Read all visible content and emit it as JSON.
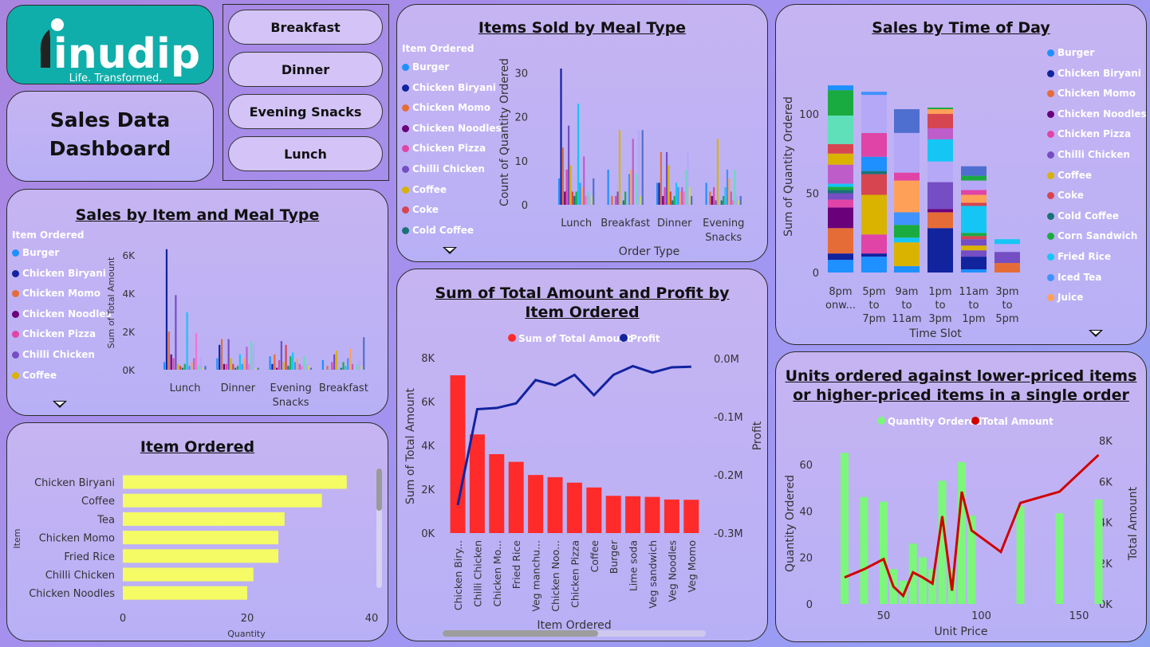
{
  "logo": {
    "name": "inudip",
    "tagline": "Life. Transformed."
  },
  "dashboard": {
    "title_line1": "Sales Data",
    "title_line2": "Dashboard"
  },
  "slicer": {
    "buttons": [
      "Breakfast",
      "Dinner",
      "Evening Snacks",
      "Lunch"
    ]
  },
  "colors": {
    "Burger": "#1e90ff",
    "Chicken Biryani": "#12239e",
    "Chicken Momo": "#e66c37",
    "Chicken Noodles": "#6b007b",
    "Chicken Pizza": "#e044a7",
    "Chilli Chicken": "#744ec2",
    "Coffee": "#d9b300",
    "Coke": "#d64550",
    "Cold Coffee": "#197278",
    "Corn Sandwich": "#1aab40",
    "Fried Rice": "#15c6f4",
    "Iced Tea": "#4092ff",
    "Juice": "#ffa058",
    "Lime soda": "#be5dc9",
    "Tea": "#f472d0",
    "Veg manchurian": "#5fe0b8",
    "Veg sandwich": "#b5a8f7",
    "Veg Noodles": "#c8d95e",
    "Veg Momo": "#4f6fd0"
  },
  "chart_data": [
    {
      "id": "items_sold_by_meal",
      "type": "bar",
      "title": "Items Sold by Meal Type",
      "xlabel": "Order Type",
      "ylabel": "Count of Quantity Ordered",
      "ylim": [
        0,
        33
      ],
      "yticks": [
        0,
        10,
        20,
        30
      ],
      "legend_title": "Item Ordered",
      "legend": [
        "Burger",
        "Chicken Biryani",
        "Chicken Momo",
        "Chicken Noodles",
        "Chicken Pizza",
        "Chilli Chicken",
        "Coffee",
        "Coke",
        "Cold Coffee"
      ],
      "categories": [
        "Lunch",
        "Breakfast",
        "Dinner",
        "Evening Snacks"
      ],
      "category_labels": [
        [
          "Lunch"
        ],
        [
          "Breakfast"
        ],
        [
          "Dinner"
        ],
        [
          "Evening",
          "Snacks"
        ]
      ],
      "series_names": [
        "Burger",
        "Chicken Biryani",
        "Chicken Momo",
        "Chicken Noodles",
        "Chicken Pizza",
        "Chilli Chicken",
        "Coffee",
        "Coke",
        "Cold Coffee",
        "Corn Sandwich",
        "Fried Rice",
        "Iced Tea",
        "Juice",
        "Lime soda",
        "Tea",
        "Veg manchurian",
        "Veg sandwich",
        "Veg Noodles",
        "Veg Momo"
      ],
      "values": [
        [
          6,
          31,
          13,
          3,
          8,
          18,
          9,
          3,
          2,
          3,
          23,
          5,
          4,
          11,
          2,
          3,
          2,
          2,
          6
        ],
        [
          8,
          0,
          2,
          0,
          2,
          3,
          17,
          0,
          1,
          3,
          0,
          7,
          8,
          15,
          0,
          7,
          17,
          2,
          17
        ],
        [
          5,
          5,
          12,
          2,
          4,
          12,
          9,
          3,
          1,
          2,
          5,
          4,
          3,
          4,
          3,
          8,
          12,
          4,
          2
        ],
        [
          5,
          0,
          3,
          2,
          4,
          1,
          15,
          0,
          1,
          2,
          4,
          8,
          6,
          3,
          1,
          8,
          2,
          1,
          2
        ]
      ]
    },
    {
      "id": "sales_by_time",
      "type": "bar",
      "stacked": true,
      "title": "Sales by Time of Day",
      "xlabel": "Time Slot",
      "ylabel": "Sum of Quantity Ordered",
      "ylim": [
        0,
        125
      ],
      "yticks": [
        0,
        50,
        100
      ],
      "legend": [
        "Burger",
        "Chicken Biryani",
        "Chicken Momo",
        "Chicken Noodles",
        "Chicken Pizza",
        "Chilli Chicken",
        "Coffee",
        "Coke",
        "Cold Coffee",
        "Corn Sandwich",
        "Fried Rice",
        "Iced Tea",
        "Juice"
      ],
      "categories": [
        "8pm onw...",
        "5pm to 7pm",
        "9am to 11am",
        "1pm to 3pm",
        "11am to 1pm",
        "3pm to 5pm"
      ],
      "category_labels": [
        [
          "8pm",
          "onw..."
        ],
        [
          "5pm",
          "to",
          "7pm"
        ],
        [
          "9am",
          "to",
          "11am"
        ],
        [
          "1pm",
          "to",
          "3pm"
        ],
        [
          "11am",
          "to",
          "1pm"
        ],
        [
          "3pm",
          "to",
          "5pm"
        ]
      ],
      "stacks": [
        [
          [
            "Burger",
            8
          ],
          [
            "Chicken Biryani",
            4
          ],
          [
            "Chicken Momo",
            16
          ],
          [
            "Chicken Noodles",
            13
          ],
          [
            "Chicken Pizza",
            5
          ],
          [
            "Chilli Chicken",
            4
          ],
          [
            "Cold Coffee",
            2
          ],
          [
            "Corn Sandwich",
            2
          ],
          [
            "Fried Rice",
            2
          ],
          [
            "Lime soda",
            12
          ],
          [
            "Coffee",
            7
          ],
          [
            "Coke",
            6
          ],
          [
            "Veg manchurian",
            18
          ],
          [
            "Corn Sandwich",
            16
          ],
          [
            "Burger",
            3
          ]
        ],
        [
          [
            "Burger",
            10
          ],
          [
            "Chicken Biryani",
            2
          ],
          [
            "Chicken Pizza",
            12
          ],
          [
            "Coffee",
            25
          ],
          [
            "Coke",
            13
          ],
          [
            "Cold Coffee",
            2
          ],
          [
            "Burger",
            9
          ],
          [
            "Chicken Pizza",
            15
          ],
          [
            "Veg sandwich",
            24
          ],
          [
            "Iced Tea",
            2
          ]
        ],
        [
          [
            "Burger",
            4
          ],
          [
            "Coffee",
            15
          ],
          [
            "Fried Rice",
            3
          ],
          [
            "Corn Sandwich",
            8
          ],
          [
            "Iced Tea",
            8
          ],
          [
            "Juice",
            20
          ],
          [
            "Chicken Pizza",
            5
          ],
          [
            "Veg sandwich",
            25
          ],
          [
            "Veg Momo",
            15
          ]
        ],
        [
          [
            "Chicken Biryani",
            28
          ],
          [
            "Chicken Momo",
            10
          ],
          [
            "Chicken Noodles",
            2
          ],
          [
            "Chilli Chicken",
            17
          ],
          [
            "Veg sandwich",
            13
          ],
          [
            "Fried Rice",
            14
          ],
          [
            "Lime soda",
            7
          ],
          [
            "Coke",
            9
          ],
          [
            "Juice",
            3
          ],
          [
            "Corn Sandwich",
            1
          ]
        ],
        [
          [
            "Burger",
            2
          ],
          [
            "Chicken Biryani",
            8
          ],
          [
            "Chilli Chicken",
            4
          ],
          [
            "Coffee",
            3
          ],
          [
            "Chilli Chicken",
            4
          ],
          [
            "Coke",
            2
          ],
          [
            "Corn Sandwich",
            2
          ],
          [
            "Fried Rice",
            17
          ],
          [
            "Coke",
            2
          ],
          [
            "Juice",
            5
          ],
          [
            "Chicken Pizza",
            3
          ],
          [
            "Veg sandwich",
            6
          ],
          [
            "Corn Sandwich",
            3
          ],
          [
            "Veg Momo",
            6
          ]
        ],
        [
          [
            "Chicken Momo",
            6
          ],
          [
            "Chilli Chicken",
            7
          ],
          [
            "Veg sandwich",
            5
          ],
          [
            "Fried Rice",
            3
          ]
        ]
      ]
    },
    {
      "id": "sales_by_item_meal",
      "type": "bar",
      "title": "Sales by Item and Meal Type",
      "ylabel": "Sum of Total Amount",
      "ylim": [
        0,
        6500
      ],
      "yticks": [
        0,
        2000,
        4000,
        6000
      ],
      "ytick_labels": [
        "0K",
        "2K",
        "4K",
        "6K"
      ],
      "legend_title": "Item Ordered",
      "legend": [
        "Burger",
        "Chicken Biryani",
        "Chicken Momo",
        "Chicken Noodles",
        "Chicken Pizza",
        "Chilli Chicken",
        "Coffee"
      ],
      "categories": [
        "Lunch",
        "Dinner",
        "Evening Snacks",
        "Breakfast"
      ],
      "category_labels": [
        [
          "Lunch"
        ],
        [
          "Dinner"
        ],
        [
          "Evening",
          "Snacks"
        ],
        [
          "Breakfast"
        ]
      ],
      "series_names": [
        "Burger",
        "Chicken Biryani",
        "Chicken Momo",
        "Chicken Noodles",
        "Chicken Pizza",
        "Chilli Chicken",
        "Coffee",
        "Coke",
        "Cold Coffee",
        "Corn Sandwich",
        "Fried Rice",
        "Iced Tea",
        "Juice",
        "Lime soda",
        "Tea",
        "Veg manchurian",
        "Veg sandwich",
        "Veg Noodles",
        "Veg Momo"
      ],
      "values": [
        [
          400,
          6300,
          2000,
          800,
          600,
          3900,
          300,
          200,
          100,
          300,
          3000,
          200,
          400,
          600,
          1900,
          200,
          600,
          100,
          200
        ],
        [
          600,
          1300,
          1600,
          300,
          300,
          1600,
          600,
          300,
          100,
          200,
          800,
          300,
          600,
          1200,
          300,
          1500,
          1300,
          100,
          100
        ],
        [
          700,
          300,
          800,
          100,
          500,
          1500,
          400,
          1300,
          200,
          700,
          900,
          400,
          600,
          300,
          200,
          700,
          300,
          200,
          100
        ],
        [
          500,
          0,
          200,
          0,
          400,
          800,
          1000,
          0,
          100,
          400,
          200,
          600,
          1100,
          300,
          0,
          300,
          500,
          200,
          1700
        ]
      ]
    },
    {
      "id": "total_amount_profit",
      "type": "bar",
      "combo": "bar+line",
      "title": "Sum of Total Amount and Profit by Item Ordered",
      "xlabel": "Item Ordered",
      "ylabel": "Sum of Total Amount",
      "y2label": "Profit",
      "ylim": [
        0,
        8000
      ],
      "yticks": [
        0,
        2000,
        4000,
        6000,
        8000
      ],
      "ytick_labels": [
        "0K",
        "2K",
        "4K",
        "6K",
        "8K"
      ],
      "y2lim": [
        -0.3,
        0.0
      ],
      "y2ticks": [
        0.0,
        -0.1,
        -0.2,
        -0.3
      ],
      "y2tick_labels": [
        "0.0M",
        "-0.1M",
        "-0.2M",
        "-0.3M"
      ],
      "legend": [
        "Sum of Total Amount",
        "Profit"
      ],
      "categories": [
        "Chicken Biry...",
        "Chilli Chicken",
        "Chicken Mo...",
        "Fried Rice",
        "Veg manchu...",
        "Chicken Noo...",
        "Chicken Pizza",
        "Coffee",
        "Burger",
        "Lime soda",
        "Veg sandwich",
        "Veg Noodles",
        "Veg Momo"
      ],
      "series": [
        {
          "name": "Sum of Total Amount",
          "values": [
            7200,
            4500,
            3600,
            3250,
            2650,
            2550,
            2300,
            2080,
            1700,
            1680,
            1650,
            1530,
            1520
          ]
        },
        {
          "name": "Profit",
          "values": [
            -0.252,
            -0.087,
            -0.085,
            -0.077,
            -0.037,
            -0.046,
            -0.028,
            -0.063,
            -0.028,
            -0.013,
            -0.024,
            -0.015,
            -0.014
          ]
        }
      ]
    },
    {
      "id": "units_vs_price",
      "type": "bar",
      "combo": "bar+line",
      "title": "Units ordered against lower-priced items or higher-priced items in a single order",
      "xlabel": "Unit Price",
      "ylabel": "Quantity Ordered",
      "y2label": "Total Amount",
      "xlim": [
        27,
        170
      ],
      "xticks": [
        50,
        100,
        150
      ],
      "ylim": [
        0,
        70
      ],
      "yticks": [
        0,
        20,
        40,
        60
      ],
      "y2lim": [
        0,
        8000
      ],
      "y2ticks": [
        0,
        2000,
        4000,
        6000,
        8000
      ],
      "y2tick_labels": [
        "0K",
        "2K",
        "4K",
        "6K",
        "8K"
      ],
      "legend": [
        "Quantity Ordered",
        "Total Amount"
      ],
      "bars": {
        "x": [
          30,
          40,
          50,
          55,
          60,
          65,
          70,
          75,
          80,
          85,
          90,
          95,
          120,
          140,
          160
        ],
        "values": [
          65,
          46,
          44,
          15,
          10,
          26,
          20,
          15,
          53,
          15,
          61,
          38,
          42,
          39,
          45
        ]
      },
      "line": {
        "x": [
          30,
          40,
          50,
          55,
          60,
          65,
          70,
          75,
          80,
          85,
          90,
          95,
          110,
          120,
          140,
          160
        ],
        "values": [
          1300,
          1700,
          2200,
          850,
          400,
          1550,
          1300,
          1000,
          4300,
          650,
          5500,
          3600,
          2550,
          4950,
          5500,
          7300
        ]
      }
    },
    {
      "id": "item_ordered",
      "type": "bar",
      "orientation": "horizontal",
      "title": "Item Ordered",
      "xlabel": "Quantity",
      "ylabel": "Item",
      "xlim": [
        0,
        40
      ],
      "xticks": [
        0,
        20,
        40
      ],
      "categories": [
        "Chicken Biryani",
        "Coffee",
        "Tea",
        "Chicken Momo",
        "Fried Rice",
        "Chilli Chicken",
        "Chicken Noodles"
      ],
      "values": [
        36,
        32,
        26,
        25,
        25,
        21,
        20
      ]
    }
  ]
}
